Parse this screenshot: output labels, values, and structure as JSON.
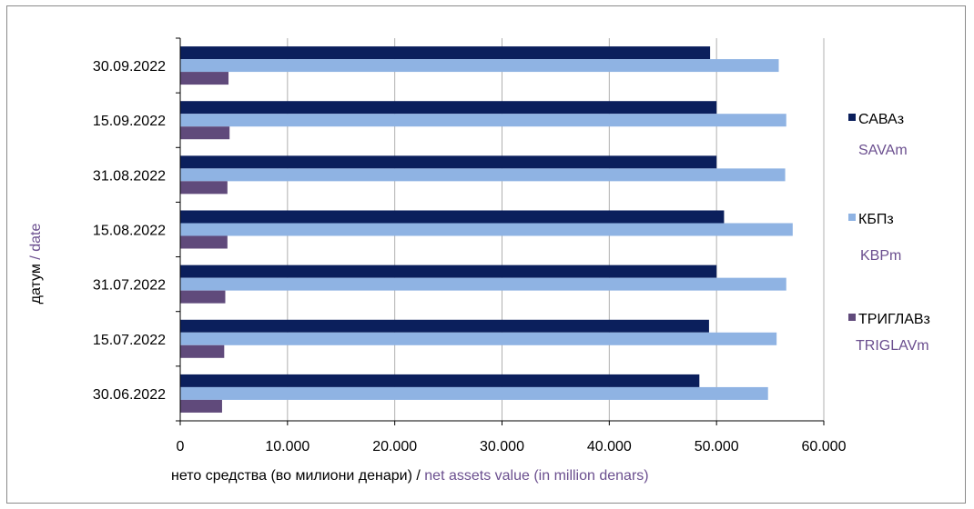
{
  "chart_data": {
    "type": "bar",
    "orientation": "horizontal",
    "categories": [
      "30.09.2022",
      "15.09.2022",
      "31.08.2022",
      "15.08.2022",
      "31.07.2022",
      "15.07.2022",
      "30.06.2022"
    ],
    "series": [
      {
        "name": "САВАз",
        "name_en": "SAVAm",
        "color": "#0b1f5c",
        "values": [
          49400,
          50000,
          50000,
          50700,
          50000,
          49300,
          48400
        ]
      },
      {
        "name": "КБПз",
        "name_en": "KBPm",
        "color": "#8fb3e3",
        "values": [
          55800,
          56500,
          56400,
          57100,
          56500,
          55600,
          54800
        ]
      },
      {
        "name": "ТРИГЛАВз",
        "name_en": "TRIGLAVm",
        "color": "#604a7b",
        "values": [
          4500,
          4600,
          4400,
          4400,
          4200,
          4100,
          3900
        ]
      }
    ],
    "xlim": [
      0,
      60000
    ],
    "xticks": [
      0,
      10000,
      20000,
      30000,
      40000,
      50000,
      60000
    ],
    "xtick_labels": [
      "0",
      "10.000",
      "20.000",
      "30.000",
      "40.000",
      "50.000",
      "60.000"
    ],
    "xlabel": "нето средства (во милиони денари) /",
    "xlabel_en": "net assets value (in million denars)",
    "ylabel": "датум",
    "ylabel_en": "/ date",
    "grid": "vertical",
    "legend": "right",
    "accent_color": "#6b4f8f"
  }
}
